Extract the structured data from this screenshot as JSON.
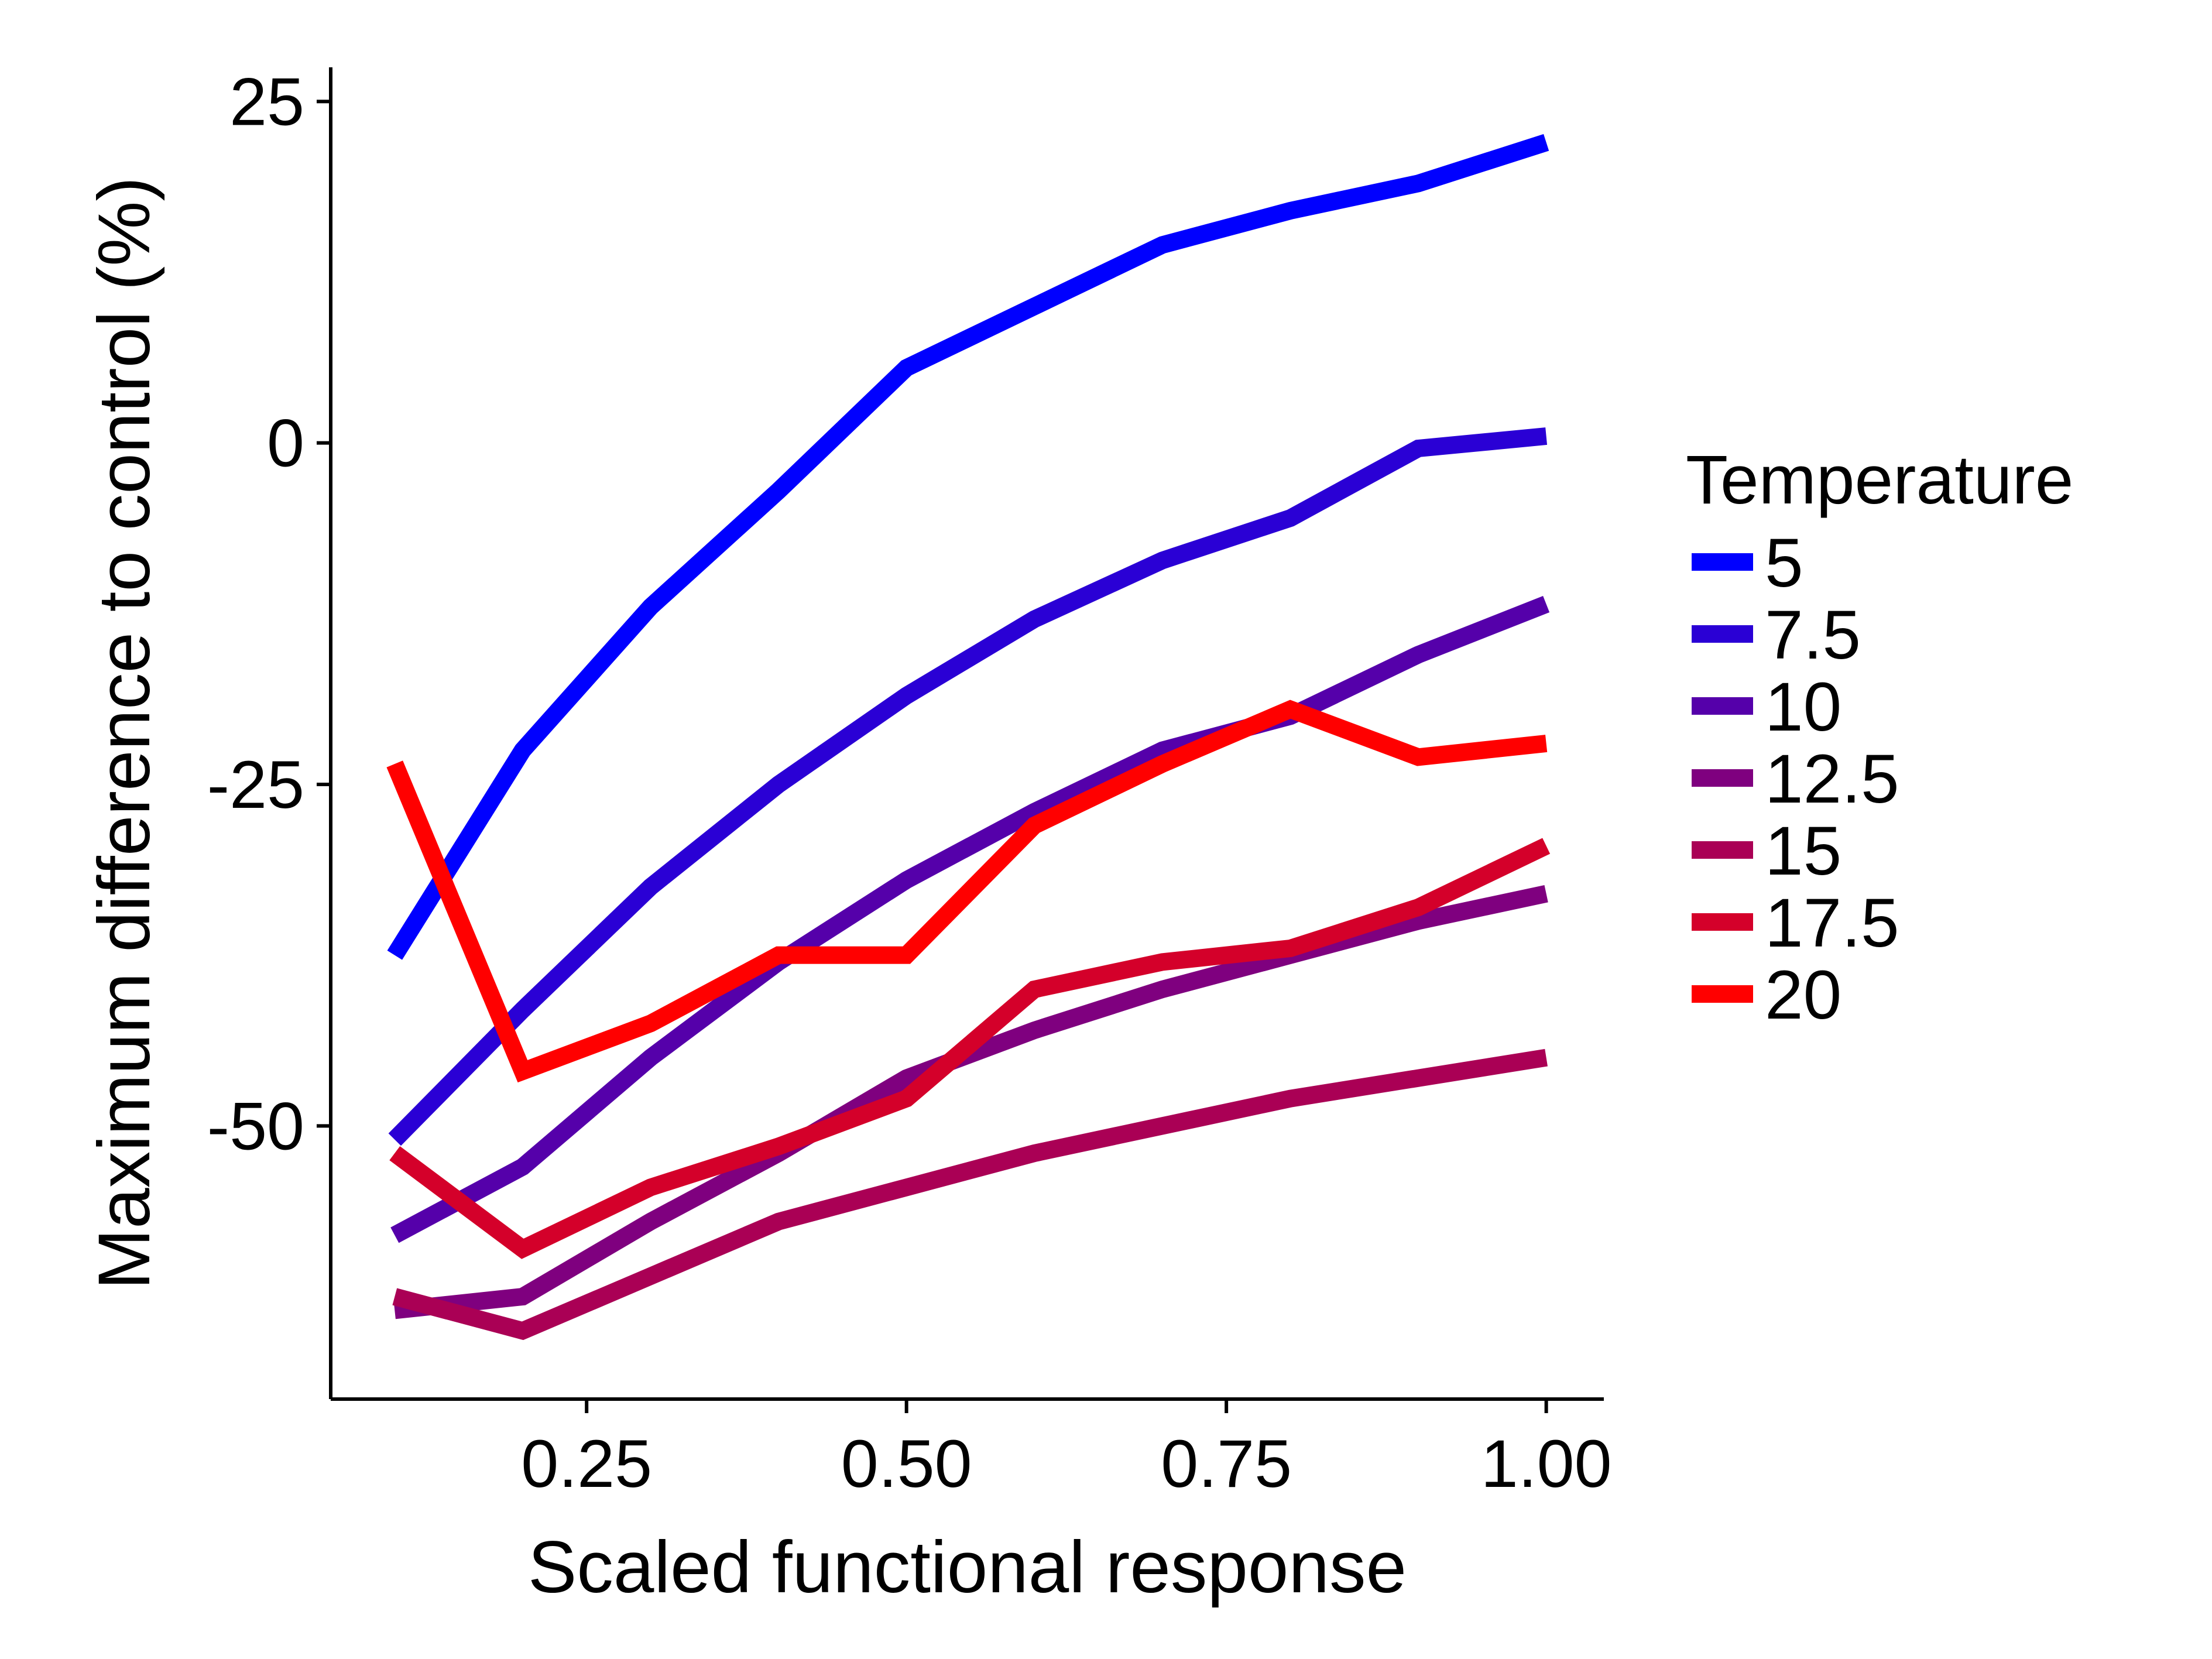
{
  "chart_data": {
    "type": "line",
    "title": "",
    "xlabel": "Scaled functional response",
    "ylabel": "Maximum difference to control (%)",
    "xlim": [
      0.05,
      1.045
    ],
    "ylim": [
      -70,
      27.5
    ],
    "xticks": [
      0.25,
      0.5,
      0.75,
      1.0
    ],
    "xtick_labels": [
      "0.25",
      "0.50",
      "0.75",
      "1.00"
    ],
    "yticks": [
      -50,
      -25,
      0,
      25
    ],
    "ytick_labels": [
      "-50",
      "-25",
      "0",
      "25"
    ],
    "grid": false,
    "legend": {
      "title": "Temperature",
      "placement": "right"
    },
    "x": [
      0.1,
      0.2,
      0.3,
      0.4,
      0.5,
      0.6,
      0.7,
      0.8,
      0.9,
      1.0
    ],
    "series": [
      {
        "name": "5",
        "color": "#0000FF",
        "values": [
          -37.5,
          -22.5,
          -12.0,
          -3.5,
          5.5,
          10.0,
          14.5,
          17.0,
          19.0,
          22.0
        ]
      },
      {
        "name": "7.5",
        "color": "#2A00D5",
        "values": [
          -51.0,
          -41.5,
          -32.5,
          -25.0,
          -18.5,
          -12.9,
          -8.6,
          -5.5,
          -0.4,
          0.5
        ]
      },
      {
        "name": "10",
        "color": "#5500AA",
        "values": [
          -58.0,
          -53.0,
          -45.0,
          -38.0,
          -32.0,
          -27.0,
          -22.5,
          -20.0,
          -15.5,
          -11.8
        ]
      },
      {
        "name": "12.5",
        "color": "#7F007F",
        "values": [
          -63.5,
          -62.5,
          -57.0,
          -52.0,
          -46.5,
          -43.0,
          -40.0,
          -37.5,
          -35.0,
          -33.0
        ]
      },
      {
        "name": "15",
        "color": "#AA0055",
        "values": [
          -62.5,
          -65.0,
          -61.0,
          -57.0,
          -54.5,
          -52.0,
          -50.0,
          -48.0,
          -46.5,
          -45.0
        ]
      },
      {
        "name": "17.5",
        "color": "#D4002A",
        "values": [
          -52.0,
          -59.0,
          -54.5,
          -51.5,
          -48.0,
          -40.0,
          -38.0,
          -37.0,
          -34.0,
          -29.5
        ]
      },
      {
        "name": "20",
        "color": "#FF0000",
        "values": [
          -23.5,
          -46.0,
          -42.5,
          -37.5,
          -37.5,
          -28.0,
          -23.5,
          -19.5,
          -23.0,
          -22.0
        ]
      }
    ]
  }
}
